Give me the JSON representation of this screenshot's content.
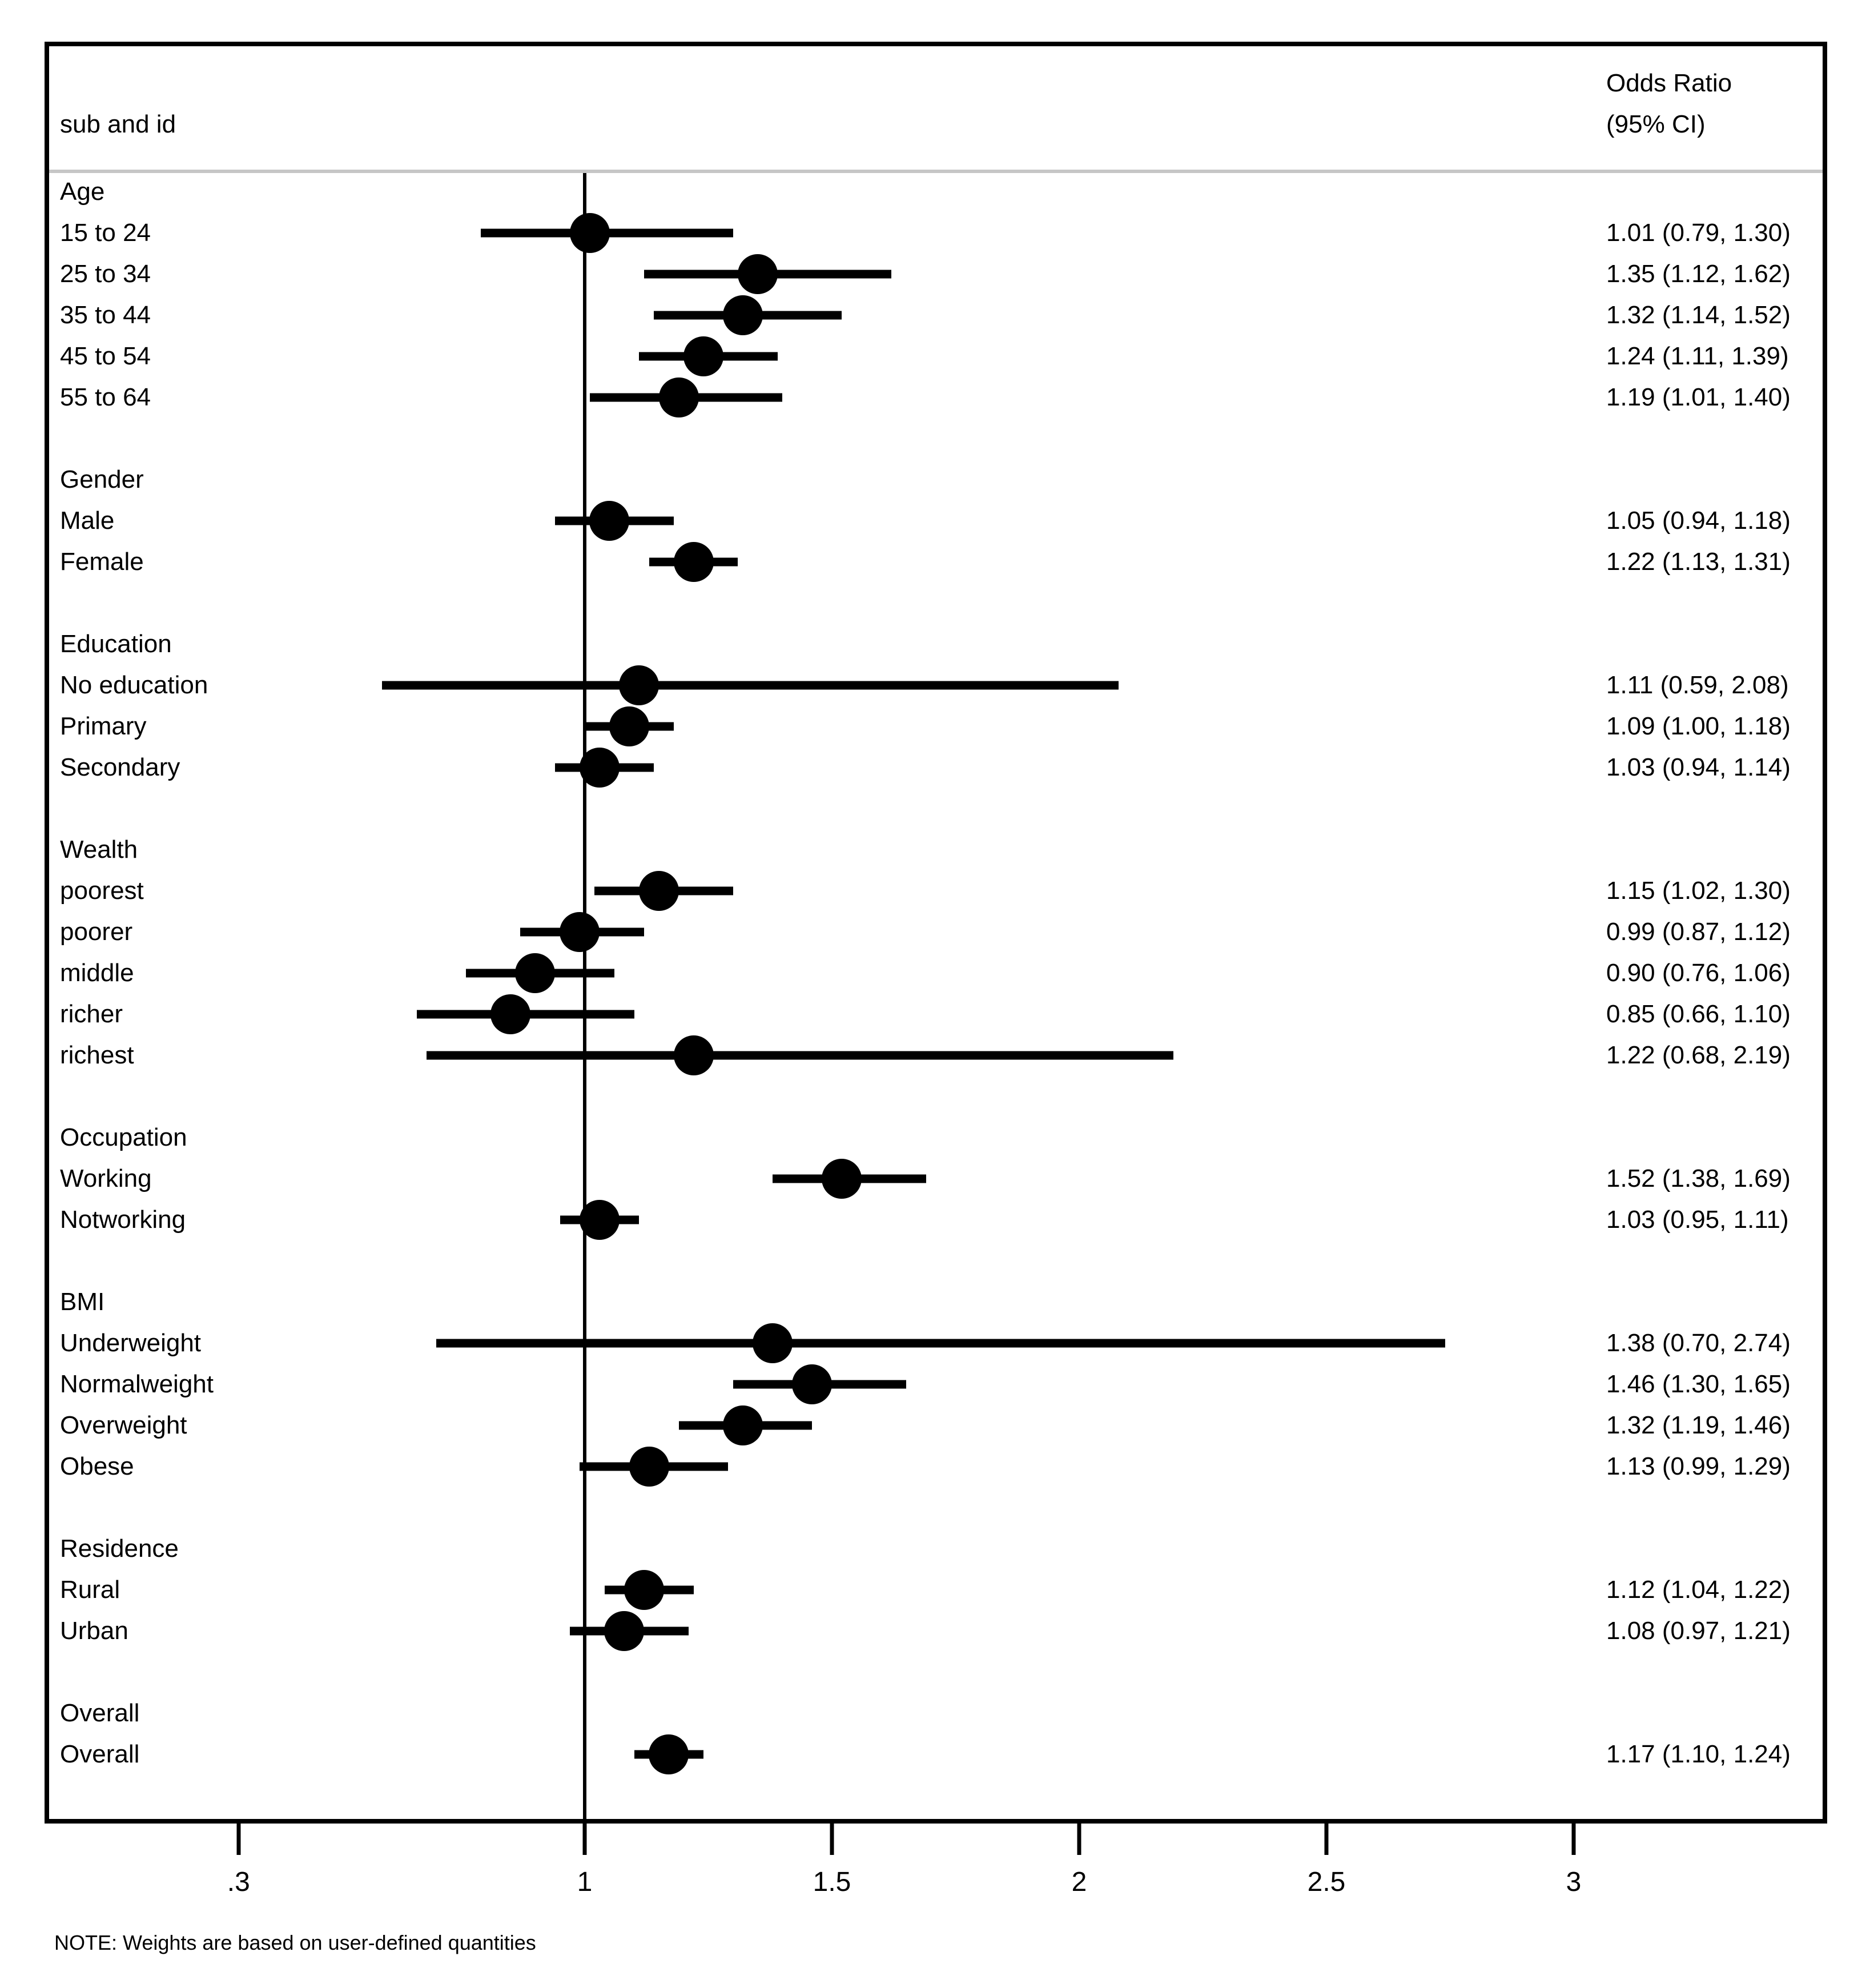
{
  "header": {
    "left_label": "sub and id",
    "right_label_line1": "Odds Ratio",
    "right_label_line2": "(95% CI)"
  },
  "note": "NOTE: Weights are based on user-defined quantities",
  "colors": {
    "foreground": "#000000",
    "background": "#ffffff",
    "separator_line": "#c6c6c6"
  },
  "chart_data": {
    "type": "forest",
    "orientation": "horizontal",
    "title": "",
    "xlabel": "",
    "x_axis": {
      "scale": "linear",
      "reference_line_value": 1,
      "ticks": [
        {
          "value": 0.3,
          "label": ".3"
        },
        {
          "value": 1,
          "label": "1"
        },
        {
          "value": 1.5,
          "label": "1.5"
        },
        {
          "value": 2,
          "label": "2"
        },
        {
          "value": 2.5,
          "label": "2.5"
        },
        {
          "value": 3,
          "label": "3"
        }
      ]
    },
    "groups": [
      {
        "label": "Age",
        "items": [
          {
            "label": "15 to 24",
            "or": 1.01,
            "ci_low": 0.79,
            "ci_high": 1.3,
            "display": "1.01 (0.79, 1.30)"
          },
          {
            "label": "25 to 34",
            "or": 1.35,
            "ci_low": 1.12,
            "ci_high": 1.62,
            "display": "1.35 (1.12, 1.62)"
          },
          {
            "label": "35 to 44",
            "or": 1.32,
            "ci_low": 1.14,
            "ci_high": 1.52,
            "display": "1.32 (1.14, 1.52)"
          },
          {
            "label": "45 to 54",
            "or": 1.24,
            "ci_low": 1.11,
            "ci_high": 1.39,
            "display": "1.24 (1.11, 1.39)"
          },
          {
            "label": "55 to 64",
            "or": 1.19,
            "ci_low": 1.01,
            "ci_high": 1.4,
            "display": "1.19 (1.01, 1.40)"
          }
        ]
      },
      {
        "label": "Gender",
        "items": [
          {
            "label": "Male",
            "or": 1.05,
            "ci_low": 0.94,
            "ci_high": 1.18,
            "display": "1.05 (0.94, 1.18)"
          },
          {
            "label": "Female",
            "or": 1.22,
            "ci_low": 1.13,
            "ci_high": 1.31,
            "display": "1.22 (1.13, 1.31)"
          }
        ]
      },
      {
        "label": "Education",
        "items": [
          {
            "label": "No education",
            "or": 1.11,
            "ci_low": 0.59,
            "ci_high": 2.08,
            "display": "1.11 (0.59, 2.08)"
          },
          {
            "label": "Primary",
            "or": 1.09,
            "ci_low": 1.0,
            "ci_high": 1.18,
            "display": "1.09 (1.00, 1.18)"
          },
          {
            "label": "Secondary",
            "or": 1.03,
            "ci_low": 0.94,
            "ci_high": 1.14,
            "display": "1.03 (0.94, 1.14)"
          }
        ]
      },
      {
        "label": "Wealth",
        "items": [
          {
            "label": "poorest",
            "or": 1.15,
            "ci_low": 1.02,
            "ci_high": 1.3,
            "display": "1.15 (1.02, 1.30)"
          },
          {
            "label": "poorer",
            "or": 0.99,
            "ci_low": 0.87,
            "ci_high": 1.12,
            "display": "0.99 (0.87, 1.12)"
          },
          {
            "label": "middle",
            "or": 0.9,
            "ci_low": 0.76,
            "ci_high": 1.06,
            "display": "0.90 (0.76, 1.06)"
          },
          {
            "label": "richer",
            "or": 0.85,
            "ci_low": 0.66,
            "ci_high": 1.1,
            "display": "0.85 (0.66, 1.10)"
          },
          {
            "label": "richest",
            "or": 1.22,
            "ci_low": 0.68,
            "ci_high": 2.19,
            "display": "1.22 (0.68, 2.19)"
          }
        ]
      },
      {
        "label": "Occupation",
        "items": [
          {
            "label": "Working",
            "or": 1.52,
            "ci_low": 1.38,
            "ci_high": 1.69,
            "display": "1.52 (1.38, 1.69)"
          },
          {
            "label": "Notworking",
            "or": 1.03,
            "ci_low": 0.95,
            "ci_high": 1.11,
            "display": "1.03 (0.95, 1.11)"
          }
        ]
      },
      {
        "label": "BMI",
        "items": [
          {
            "label": "Underweight",
            "or": 1.38,
            "ci_low": 0.7,
            "ci_high": 2.74,
            "display": "1.38 (0.70, 2.74)"
          },
          {
            "label": "Normalweight",
            "or": 1.46,
            "ci_low": 1.3,
            "ci_high": 1.65,
            "display": "1.46 (1.30, 1.65)"
          },
          {
            "label": "Overweight",
            "or": 1.32,
            "ci_low": 1.19,
            "ci_high": 1.46,
            "display": "1.32 (1.19, 1.46)"
          },
          {
            "label": "Obese",
            "or": 1.13,
            "ci_low": 0.99,
            "ci_high": 1.29,
            "display": "1.13 (0.99, 1.29)"
          }
        ]
      },
      {
        "label": "Residence",
        "items": [
          {
            "label": "Rural",
            "or": 1.12,
            "ci_low": 1.04,
            "ci_high": 1.22,
            "display": "1.12 (1.04, 1.22)"
          },
          {
            "label": "Urban",
            "or": 1.08,
            "ci_low": 0.97,
            "ci_high": 1.21,
            "display": "1.08 (0.97, 1.21)"
          }
        ]
      },
      {
        "label": "Overall",
        "items": [
          {
            "label": "Overall",
            "or": 1.17,
            "ci_low": 1.1,
            "ci_high": 1.24,
            "display": "1.17 (1.10, 1.24)"
          }
        ]
      }
    ]
  }
}
